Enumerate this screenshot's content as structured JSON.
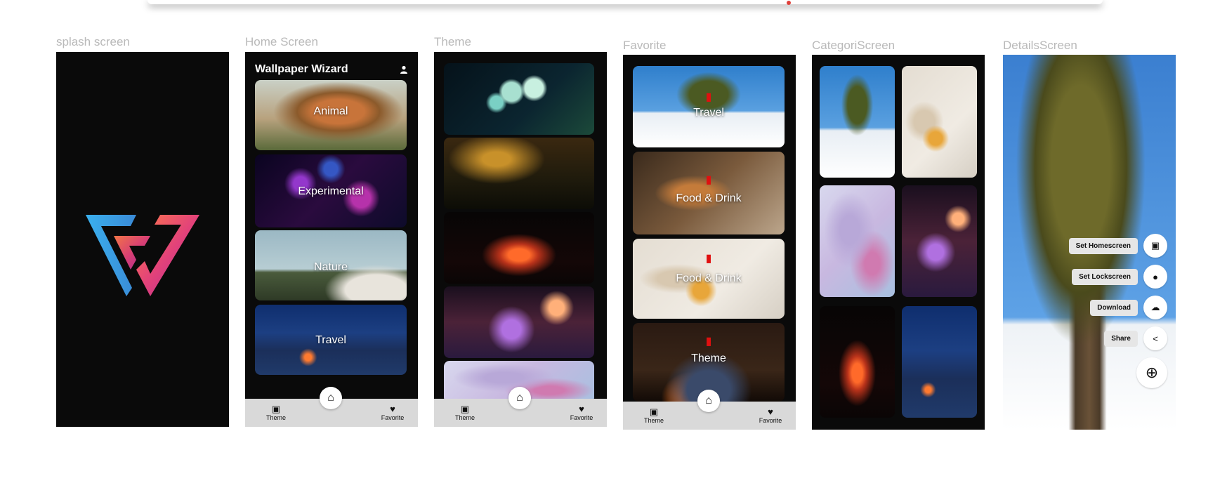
{
  "labels": {
    "splash": "splash screen",
    "home": "Home Screen",
    "theme": "Theme",
    "favorite": "Favorite",
    "category": "CategoriScreen",
    "details": "DetailsScreen"
  },
  "home": {
    "title": "Wallpaper Wizard",
    "categories": [
      "Animal",
      "Experimental",
      "Nature",
      "Travel"
    ]
  },
  "nav": {
    "theme": "Theme",
    "favorite": "Favorite"
  },
  "favorites": {
    "items": [
      "Travel",
      "Food & Drink",
      "Food & Drink",
      "Theme"
    ]
  },
  "details": {
    "actions": [
      "Set Homescreen",
      "Set Lockscreen",
      "Download",
      "Share"
    ]
  },
  "icons": {
    "profile": "person-icon",
    "theme": "image-icon",
    "home": "home-icon",
    "favorite": "heart-icon",
    "delete": "trash-icon",
    "add": "plus-circle-icon"
  },
  "colors": {
    "frame_bg": "#0a0a0a",
    "navbar_bg": "#d9d9d9",
    "delete": "#e01010",
    "label": "#b9b9b9"
  }
}
